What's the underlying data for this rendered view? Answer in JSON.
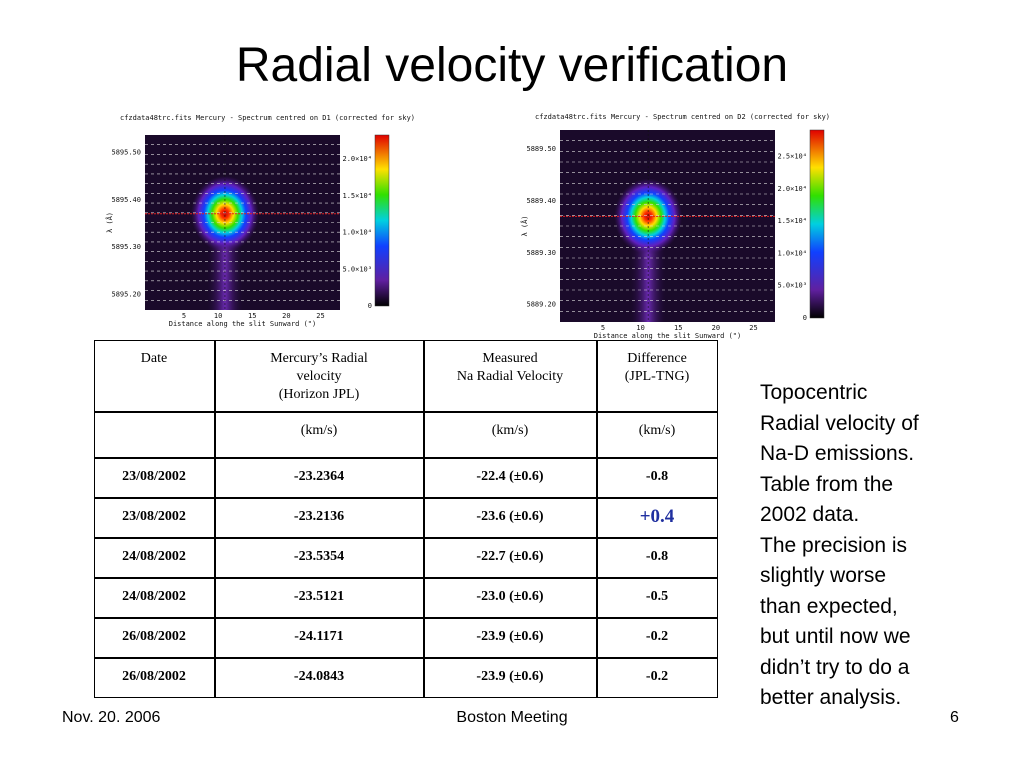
{
  "title": "Radial velocity verification",
  "plots": [
    {
      "header": "cfzdata48trc.fits   Mercury - Spectrum centred on D1 (corrected for sky)",
      "ylabel": "λ (Å)",
      "xlabel": "Distance along the slit Sunward (\")",
      "yticks": [
        "5895.50",
        "5895.40",
        "5895.30",
        "5895.20"
      ],
      "xticks": [
        "5",
        "10",
        "15",
        "20",
        "25"
      ],
      "colorbar": [
        "2.0×10⁴",
        "1.5×10⁴",
        "1.0×10⁴",
        "5.0×10³",
        "0"
      ]
    },
    {
      "header": "cfzdata48trc.fits   Mercury - Spectrum centred on D2 (corrected for sky)",
      "ylabel": "λ (Å)",
      "xlabel": "Distance along the slit Sunward (\")",
      "yticks": [
        "5889.50",
        "5889.40",
        "5889.30",
        "5889.20"
      ],
      "xticks": [
        "5",
        "10",
        "15",
        "20",
        "25"
      ],
      "colorbar": [
        "2.5×10⁴",
        "2.0×10⁴",
        "1.5×10⁴",
        "1.0×10⁴",
        "5.0×10³",
        "0"
      ]
    }
  ],
  "table": {
    "header": [
      [
        "Date"
      ],
      [
        "Mercury’s Radial",
        "velocity",
        "(Horizon JPL)"
      ],
      [
        "Measured",
        "Na Radial Velocity"
      ],
      [
        "Difference",
        "(JPL-TNG)"
      ]
    ],
    "units": [
      "(km/s)",
      "(km/s)",
      "(km/s)"
    ],
    "rows": [
      [
        "23/08/2002",
        "-23.2364",
        "-22.4 (±0.6)",
        "-0.8"
      ],
      [
        "23/08/2002",
        "-23.2136",
        "-23.6 (±0.6)",
        "+0.4"
      ],
      [
        "24/08/2002",
        "-23.5354",
        "-22.7 (±0.6)",
        "-0.8"
      ],
      [
        "24/08/2002",
        "-23.5121",
        "-23.0 (±0.6)",
        "-0.5"
      ],
      [
        "26/08/2002",
        "-24.1171",
        "-23.9 (±0.6)",
        "-0.2"
      ],
      [
        "26/08/2002",
        "-24.0843",
        "-23.9 (±0.6)",
        "-0.2"
      ]
    ]
  },
  "note": [
    "Topocentric",
    "Radial velocity of",
    "Na-D emissions.",
    "Table from the",
    "2002 data.",
    "The precision is",
    "slightly worse",
    "than expected,",
    "but until now we",
    "didn’t try to do a",
    "better analysis."
  ],
  "footer": {
    "left": "Nov. 20. 2006",
    "center": "Boston Meeting",
    "right": "6"
  }
}
